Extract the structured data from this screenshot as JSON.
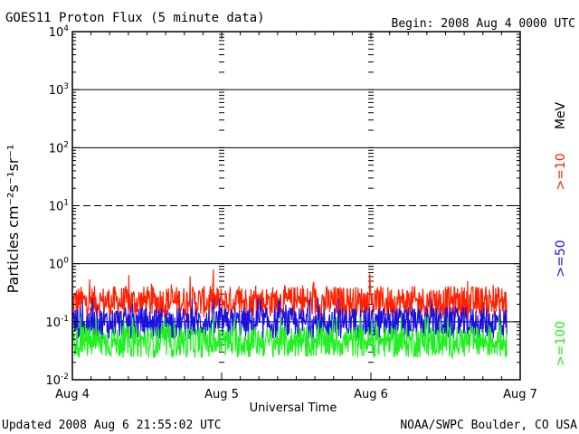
{
  "header": {
    "title": "GOES11 Proton Flux (5 minute data)",
    "begin": "Begin: 2008 Aug 4 0000 UTC"
  },
  "footer": {
    "updated": "Updated 2008 Aug  6 21:55:02 UTC",
    "credit": "NOAA/SWPC Boulder, CO USA"
  },
  "colors": {
    "ge10": "#ff2000",
    "ge50": "#1a10e0",
    "ge100": "#20f020",
    "axis": "#000000"
  },
  "chart_data": {
    "type": "line",
    "title": "GOES11 Proton Flux (5 minute data)",
    "xlabel": "Universal Time",
    "ylabel": "Particles cm⁻²s⁻¹sr⁻¹",
    "yscale": "log",
    "ylim": [
      0.01,
      10000
    ],
    "xlim_days": [
      "Aug 4",
      "Aug 7"
    ],
    "x_tick_labels": [
      "Aug 4",
      "Aug 5",
      "Aug 6",
      "Aug 7"
    ],
    "y_tick_labels": [
      {
        "base": "10",
        "exp": "-2"
      },
      {
        "base": "10",
        "exp": "-1"
      },
      {
        "base": "10",
        "exp": "0"
      },
      {
        "base": "10",
        "exp": "1"
      },
      {
        "base": "10",
        "exp": "2"
      },
      {
        "base": "10",
        "exp": "3"
      },
      {
        "base": "10",
        "exp": "4"
      }
    ],
    "data_end_day": 2.91,
    "legend_unit": "MeV",
    "series": [
      {
        "name": ">=10",
        "color_key": "ge10",
        "typical": 0.22,
        "min": 0.1,
        "max": 0.8
      },
      {
        "name": ">=50",
        "color_key": "ge50",
        "typical": 0.095,
        "min": 0.05,
        "max": 0.25
      },
      {
        "name": ">=100",
        "color_key": "ge100",
        "typical": 0.045,
        "min": 0.02,
        "max": 0.12
      }
    ]
  }
}
